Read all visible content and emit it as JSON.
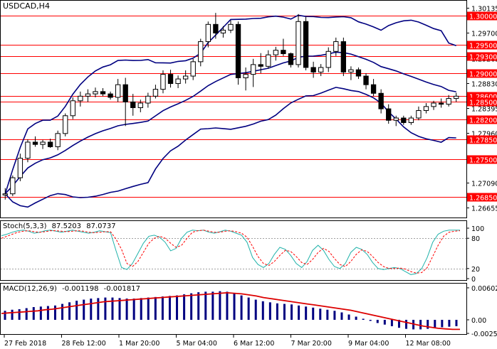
{
  "chart_data": [
    {
      "type": "candlestick",
      "title": "USDCAD,H4",
      "ylim": [
        1.265,
        1.3025
      ],
      "y_ticks": [
        "1.30135",
        "1.29700",
        "1.29265",
        "1.28830",
        "1.28395",
        "1.27960",
        "1.27525",
        "1.27090",
        "1.26655"
      ],
      "levels": [
        "1.30000",
        "1.29500",
        "1.29300",
        "1.29000",
        "1.28600",
        "1.28500",
        "1.28200",
        "1.27850",
        "1.27500",
        "1.26850"
      ],
      "x_labels": [
        "27 Feb 2018",
        "28 Feb 12:00",
        "1 Mar 20:00",
        "5 Mar 04:00",
        "6 Mar 12:00",
        "7 Mar 20:00",
        "9 Mar 04:00",
        "12 Mar 08:00"
      ],
      "colors": {
        "level_line": "#ff0000",
        "bands": "#000080",
        "candle": "#000000",
        "level_label_bg": "#ff0000",
        "level_label_text": "#ffffff"
      },
      "candles": [
        [
          1.2688,
          1.27,
          1.268,
          1.269
        ],
        [
          1.269,
          1.2722,
          1.2686,
          1.2718
        ],
        [
          1.2718,
          1.276,
          1.2712,
          1.2752
        ],
        [
          1.2752,
          1.2785,
          1.2745,
          1.278
        ],
        [
          1.278,
          1.279,
          1.2772,
          1.2776
        ],
        [
          1.2776,
          1.2784,
          1.2768,
          1.278
        ],
        [
          1.278,
          1.2786,
          1.277,
          1.2772
        ],
        [
          1.2772,
          1.28,
          1.2766,
          1.2795
        ],
        [
          1.2795,
          1.283,
          1.279,
          1.2826
        ],
        [
          1.2826,
          1.2858,
          1.282,
          1.2852
        ],
        [
          1.2852,
          1.2868,
          1.2842,
          1.286
        ],
        [
          1.286,
          1.2872,
          1.285,
          1.2864
        ],
        [
          1.2864,
          1.2875,
          1.2858,
          1.2868
        ],
        [
          1.2868,
          1.2874,
          1.286,
          1.2864
        ],
        [
          1.2864,
          1.2868,
          1.2854,
          1.2858
        ],
        [
          1.2858,
          1.289,
          1.285,
          1.288
        ],
        [
          1.288,
          1.2892,
          1.2808,
          1.285
        ],
        [
          1.285,
          1.2864,
          1.2826,
          1.284
        ],
        [
          1.284,
          1.2854,
          1.2832,
          1.2848
        ],
        [
          1.2848,
          1.2866,
          1.284,
          1.286
        ],
        [
          1.286,
          1.288,
          1.2856,
          1.2872
        ],
        [
          1.2872,
          1.2905,
          1.2865,
          1.2898
        ],
        [
          1.2898,
          1.2906,
          1.2875,
          1.2882
        ],
        [
          1.2882,
          1.2896,
          1.2874,
          1.289
        ],
        [
          1.289,
          1.2905,
          1.2882,
          1.2895
        ],
        [
          1.2895,
          1.2925,
          1.2888,
          1.292
        ],
        [
          1.292,
          1.296,
          1.2912,
          1.2955
        ],
        [
          1.2955,
          1.299,
          1.2945,
          1.2985
        ],
        [
          1.2985,
          1.3005,
          1.296,
          1.297
        ],
        [
          1.297,
          1.2982,
          1.2962,
          1.2975
        ],
        [
          1.2975,
          1.2992,
          1.297,
          1.2985
        ],
        [
          1.2985,
          1.299,
          1.288,
          1.2892
        ],
        [
          1.2892,
          1.291,
          1.287,
          1.2898
        ],
        [
          1.2898,
          1.2925,
          1.2876,
          1.2915
        ],
        [
          1.2915,
          1.2935,
          1.29,
          1.2912
        ],
        [
          1.2912,
          1.294,
          1.2908,
          1.2932
        ],
        [
          1.2932,
          1.2946,
          1.2922,
          1.294
        ],
        [
          1.294,
          1.296,
          1.293,
          1.2934
        ],
        [
          1.2934,
          1.2936,
          1.291,
          1.2915
        ],
        [
          1.2915,
          1.3003,
          1.291,
          1.299
        ],
        [
          1.299,
          1.2998,
          1.2905,
          1.291
        ],
        [
          1.291,
          1.292,
          1.2892,
          1.2902
        ],
        [
          1.2902,
          1.2916,
          1.2895,
          1.291
        ],
        [
          1.291,
          1.2945,
          1.2902,
          1.2938
        ],
        [
          1.2938,
          1.2962,
          1.293,
          1.2955
        ],
        [
          1.2955,
          1.2962,
          1.2895,
          1.2902
        ],
        [
          1.2902,
          1.2912,
          1.2888,
          1.2906
        ],
        [
          1.2906,
          1.291,
          1.289,
          1.2895
        ],
        [
          1.2895,
          1.29,
          1.2872,
          1.288
        ],
        [
          1.288,
          1.289,
          1.286,
          1.2865
        ],
        [
          1.2865,
          1.2872,
          1.283,
          1.2838
        ],
        [
          1.2838,
          1.2846,
          1.2812,
          1.2818
        ],
        [
          1.2818,
          1.2826,
          1.2808,
          1.2822
        ],
        [
          1.2822,
          1.2826,
          1.281,
          1.2814
        ],
        [
          1.2814,
          1.2826,
          1.281,
          1.2822
        ],
        [
          1.2822,
          1.2842,
          1.2818,
          1.2835
        ],
        [
          1.2835,
          1.2848,
          1.283,
          1.2842
        ],
        [
          1.2842,
          1.2852,
          1.2836,
          1.2848
        ],
        [
          1.2848,
          1.2856,
          1.284,
          1.2846
        ],
        [
          1.2846,
          1.2862,
          1.2842,
          1.2856
        ],
        [
          1.2856,
          1.2866,
          1.285,
          1.286
        ]
      ]
    },
    {
      "type": "line",
      "title": "Stoch(5,3,3)",
      "value_labels": [
        "87.5203",
        "87.0737"
      ],
      "ylim": [
        0,
        100
      ],
      "y_ticks": [
        "100",
        "80",
        "20",
        "0"
      ],
      "levels": [
        80,
        20
      ],
      "series": [
        {
          "color": "#20b2aa",
          "style": "solid",
          "values": [
            85,
            88,
            92,
            95,
            96,
            94,
            90,
            92,
            95,
            96,
            94,
            92,
            94,
            96,
            94,
            92,
            90,
            92,
            95,
            93,
            91,
            55,
            22,
            18,
            30,
            50,
            70,
            84,
            86,
            82,
            72,
            55,
            60,
            80,
            92,
            96,
            95,
            96,
            92,
            90,
            93,
            96,
            94,
            90,
            86,
            72,
            42,
            28,
            22,
            30,
            48,
            62,
            58,
            46,
            30,
            22,
            34,
            56,
            66,
            56,
            38,
            24,
            20,
            30,
            52,
            62,
            58,
            48,
            32,
            20,
            18,
            20,
            22,
            20,
            14,
            8,
            10,
            20,
            42,
            72,
            88,
            94,
            96,
            96,
            96
          ]
        },
        {
          "color": "#ff0000",
          "style": "dashed",
          "values": [
            80,
            84,
            88,
            92,
            94,
            95,
            93,
            92,
            93,
            95,
            95,
            94,
            93,
            94,
            95,
            94,
            92,
            91,
            92,
            93,
            93,
            78,
            58,
            30,
            24,
            34,
            52,
            70,
            80,
            84,
            80,
            70,
            62,
            66,
            80,
            92,
            95,
            96,
            94,
            92,
            92,
            94,
            95,
            93,
            90,
            82,
            64,
            44,
            30,
            26,
            34,
            46,
            56,
            54,
            44,
            32,
            28,
            38,
            52,
            60,
            54,
            40,
            28,
            24,
            34,
            48,
            57,
            54,
            44,
            32,
            24,
            20,
            20,
            21,
            19,
            14,
            11,
            12,
            22,
            44,
            66,
            84,
            92,
            94,
            95
          ]
        }
      ]
    },
    {
      "type": "bar",
      "title": "MACD(12,26,9)",
      "value_labels": [
        "-0.001198",
        "-0.001817"
      ],
      "ylim": [
        -0.00255,
        0.00602
      ],
      "y_ticks": [
        "0.006027",
        "0.00",
        "-0.002555"
      ],
      "series": [
        {
          "name": "",
          "type": "bar",
          "color": "#000080",
          "values": [
            0.0017,
            0.0019,
            0.002,
            0.0022,
            0.0024,
            0.0025,
            0.0026,
            0.0027,
            0.003,
            0.0033,
            0.0036,
            0.0038,
            0.004,
            0.0041,
            0.0042,
            0.0042,
            0.0041,
            0.004,
            0.004,
            0.0041,
            0.0042,
            0.0043,
            0.0044,
            0.0045,
            0.0046,
            0.0048,
            0.005,
            0.0052,
            0.0053,
            0.0053,
            0.0054,
            0.0053,
            0.005,
            0.0046,
            0.0042,
            0.0038,
            0.0035,
            0.0033,
            0.0031,
            0.003,
            0.0029,
            0.0027,
            0.0025,
            0.0023,
            0.0021,
            0.0019,
            0.0017,
            0.0014,
            0.001,
            0.0006,
            0.0002,
            -0.0002,
            -0.0006,
            -0.0009,
            -0.0012,
            -0.0015,
            -0.0017,
            -0.0018,
            -0.0018,
            -0.0017,
            -0.0016,
            -0.0014,
            -0.0013,
            -0.0012
          ]
        },
        {
          "name": "",
          "type": "line",
          "color": "#dd0000",
          "values": [
            0.0012,
            0.0013,
            0.0014,
            0.0015,
            0.0016,
            0.0017,
            0.0019,
            0.002,
            0.0022,
            0.0024,
            0.0026,
            0.0028,
            0.003,
            0.0032,
            0.0034,
            0.0035,
            0.0036,
            0.0037,
            0.0038,
            0.0039,
            0.004,
            0.0041,
            0.0042,
            0.0043,
            0.0044,
            0.0045,
            0.0046,
            0.0047,
            0.0048,
            0.0049,
            0.005,
            0.0051,
            0.005,
            0.0049,
            0.0047,
            0.0045,
            0.0042,
            0.004,
            0.0038,
            0.0036,
            0.0034,
            0.0032,
            0.003,
            0.0028,
            0.0026,
            0.0024,
            0.0022,
            0.002,
            0.0018,
            0.0015,
            0.0012,
            0.0009,
            0.0006,
            0.0003,
            0.0,
            -0.0003,
            -0.0006,
            -0.0009,
            -0.0012,
            -0.0014,
            -0.0016,
            -0.0017,
            -0.0018,
            -0.0018
          ]
        }
      ]
    }
  ]
}
